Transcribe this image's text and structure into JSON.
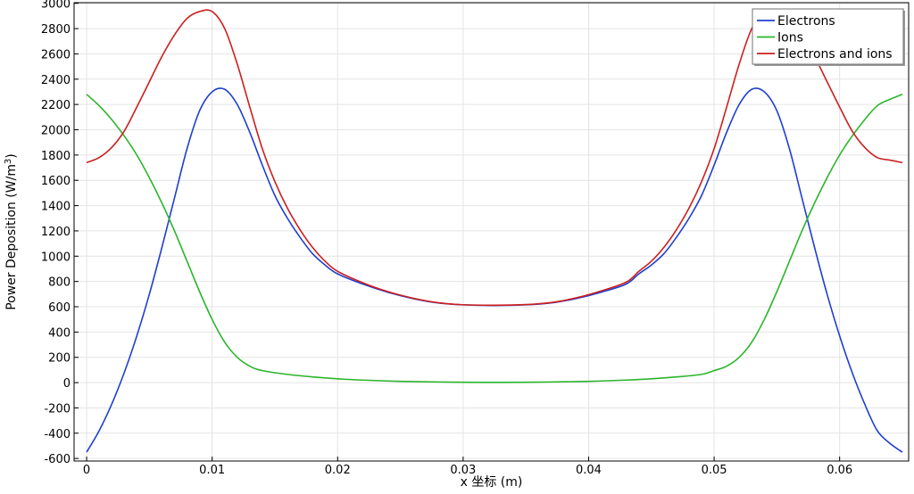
{
  "chart_data": {
    "type": "line",
    "xlabel": "x 坐标 (m)",
    "ylabel_main": "Power Deposition (W/m",
    "ylabel_sup": "3",
    "ylabel_close": ")",
    "xlim": [
      -0.001,
      0.0655
    ],
    "ylim": [
      -620,
      3005
    ],
    "xticks": [
      0,
      0.01,
      0.02,
      0.03,
      0.04,
      0.05,
      0.06
    ],
    "xtick_labels": [
      "0",
      "0.01",
      "0.02",
      "0.03",
      "0.04",
      "0.05",
      "0.06"
    ],
    "yticks": [
      -600,
      -400,
      -200,
      0,
      200,
      400,
      600,
      800,
      1000,
      1200,
      1400,
      1600,
      1800,
      2000,
      2200,
      2400,
      2600,
      2800,
      3000
    ],
    "ytick_labels": [
      "-600",
      "-400",
      "-200",
      "0",
      "200",
      "400",
      "600",
      "800",
      "1000",
      "1200",
      "1400",
      "1600",
      "1800",
      "2000",
      "2200",
      "2400",
      "2600",
      "2800",
      "3000"
    ],
    "grid": true,
    "legend_position": "top-right",
    "series": [
      {
        "name": "Electrons",
        "color": "#1f3fd0",
        "x": [
          0,
          0.001,
          0.002,
          0.003,
          0.004,
          0.005,
          0.006,
          0.007,
          0.008,
          0.009,
          0.01,
          0.011,
          0.012,
          0.013,
          0.014,
          0.015,
          0.016,
          0.017,
          0.018,
          0.019,
          0.02,
          0.022,
          0.024,
          0.026,
          0.028,
          0.03,
          0.0325,
          0.035,
          0.037,
          0.039,
          0.041,
          0.043,
          0.044,
          0.045,
          0.046,
          0.047,
          0.048,
          0.049,
          0.05,
          0.051,
          0.052,
          0.053,
          0.054,
          0.055,
          0.056,
          0.057,
          0.058,
          0.059,
          0.06,
          0.061,
          0.062,
          0.063,
          0.064,
          0.065
        ],
        "y": [
          -550,
          -380,
          -170,
          80,
          370,
          700,
          1070,
          1460,
          1850,
          2150,
          2300,
          2320,
          2200,
          1980,
          1720,
          1480,
          1300,
          1150,
          1020,
          930,
          860,
          780,
          715,
          665,
          630,
          615,
          610,
          615,
          630,
          665,
          715,
          780,
          860,
          930,
          1020,
          1150,
          1300,
          1480,
          1720,
          1980,
          2200,
          2320,
          2300,
          2150,
          1850,
          1460,
          1070,
          700,
          370,
          80,
          -170,
          -380,
          -480,
          -550
        ]
      },
      {
        "name": "Ions",
        "color": "#2ab52a",
        "x": [
          0,
          0.001,
          0.002,
          0.003,
          0.004,
          0.005,
          0.006,
          0.007,
          0.008,
          0.009,
          0.01,
          0.011,
          0.012,
          0.013,
          0.014,
          0.016,
          0.018,
          0.02,
          0.022,
          0.025,
          0.028,
          0.03,
          0.0325,
          0.035,
          0.037,
          0.04,
          0.043,
          0.045,
          0.047,
          0.049,
          0.05,
          0.051,
          0.052,
          0.053,
          0.054,
          0.055,
          0.056,
          0.057,
          0.058,
          0.059,
          0.06,
          0.061,
          0.062,
          0.063,
          0.064,
          0.065
        ],
        "y": [
          2280,
          2190,
          2080,
          1950,
          1800,
          1620,
          1420,
          1200,
          960,
          720,
          500,
          320,
          200,
          130,
          95,
          65,
          45,
          30,
          20,
          10,
          5,
          3,
          2,
          3,
          5,
          10,
          20,
          30,
          45,
          65,
          95,
          130,
          200,
          320,
          500,
          720,
          960,
          1200,
          1420,
          1620,
          1800,
          1950,
          2080,
          2190,
          2240,
          2280
        ]
      },
      {
        "name": "Electrons and ions",
        "color": "#cc1f1f",
        "x": [
          0,
          0.001,
          0.002,
          0.003,
          0.004,
          0.005,
          0.006,
          0.007,
          0.008,
          0.009,
          0.01,
          0.011,
          0.012,
          0.013,
          0.014,
          0.015,
          0.016,
          0.017,
          0.018,
          0.019,
          0.02,
          0.022,
          0.024,
          0.026,
          0.028,
          0.03,
          0.0325,
          0.035,
          0.037,
          0.039,
          0.041,
          0.043,
          0.044,
          0.045,
          0.046,
          0.047,
          0.048,
          0.049,
          0.05,
          0.051,
          0.052,
          0.053,
          0.054,
          0.055,
          0.056,
          0.057,
          0.058,
          0.059,
          0.06,
          0.061,
          0.062,
          0.063,
          0.064,
          0.065
        ],
        "y": [
          1740,
          1780,
          1860,
          1990,
          2180,
          2380,
          2580,
          2750,
          2880,
          2935,
          2935,
          2800,
          2520,
          2180,
          1850,
          1590,
          1380,
          1210,
          1070,
          960,
          880,
          790,
          720,
          668,
          632,
          616,
          612,
          617,
          633,
          670,
          725,
          795,
          880,
          960,
          1070,
          1210,
          1380,
          1590,
          1850,
          2180,
          2520,
          2800,
          2935,
          2935,
          2880,
          2750,
          2580,
          2380,
          2180,
          1990,
          1860,
          1780,
          1760,
          1740
        ]
      }
    ]
  }
}
